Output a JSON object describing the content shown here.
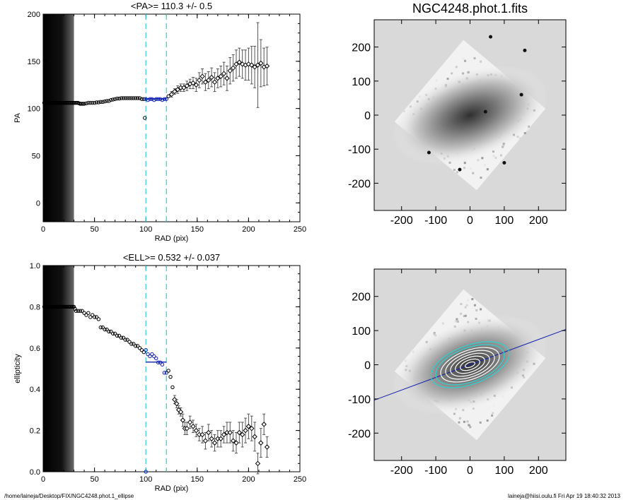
{
  "footer": {
    "path": "/home/laineja/Desktop/FIX/NGC4248.phot.1_ellipse",
    "user_time": "laineja@hiisi.oulu.fi  Fri Apr 19 18:40:32 2013"
  },
  "colors": {
    "guide_lines": "#2fd3d3",
    "mean_line": "#1020b0",
    "errorbar": "#555555"
  },
  "chart_data": [
    {
      "id": "pa-profile",
      "type": "scatter",
      "title": "<PA>= 110.3 +/-   0.5",
      "xlabel": "RAD (pix)",
      "ylabel": "PA",
      "xlim": [
        0,
        250
      ],
      "ylim": [
        -20,
        200
      ],
      "xticks": [
        0,
        50,
        100,
        150,
        200,
        250
      ],
      "yticks": [
        0,
        50,
        100,
        150,
        200
      ],
      "masked_inner_radius": [
        0,
        30
      ],
      "guide_lines_x": [
        100,
        120
      ],
      "mean_segment": {
        "x": [
          100,
          120
        ],
        "y": 110.3
      },
      "series": [
        {
          "points": [
            [
              1,
              106
            ],
            [
              2,
              106
            ],
            [
              3,
              106
            ],
            [
              4,
              106
            ],
            [
              5,
              106
            ],
            [
              6,
              106
            ],
            [
              7,
              106
            ],
            [
              8,
              106
            ],
            [
              9,
              106
            ],
            [
              10,
              106
            ],
            [
              11,
              106
            ],
            [
              12,
              106
            ],
            [
              13,
              106
            ],
            [
              14,
              106
            ],
            [
              15,
              106
            ],
            [
              16,
              106
            ],
            [
              17,
              106
            ],
            [
              18,
              106
            ],
            [
              19,
              106
            ],
            [
              20,
              106
            ],
            [
              21,
              106
            ],
            [
              22,
              106
            ],
            [
              23,
              106
            ],
            [
              24,
              106
            ],
            [
              25,
              106
            ],
            [
              26,
              106
            ],
            [
              27,
              106
            ],
            [
              28,
              106
            ],
            [
              29,
              106
            ],
            [
              30,
              106
            ],
            [
              31,
              106
            ],
            [
              32,
              106
            ],
            [
              33,
              106
            ],
            [
              34,
              106
            ],
            [
              35,
              105.5
            ],
            [
              36,
              105
            ],
            [
              37,
              105
            ],
            [
              38,
              105
            ],
            [
              39,
              105
            ],
            [
              40,
              105
            ],
            [
              42,
              105.5
            ],
            [
              44,
              106
            ],
            [
              46,
              106
            ],
            [
              48,
              106
            ],
            [
              50,
              106
            ],
            [
              52,
              106.5
            ],
            [
              54,
              106.5
            ],
            [
              56,
              107
            ],
            [
              58,
              107
            ],
            [
              60,
              107.5
            ],
            [
              62,
              108
            ],
            [
              64,
              108
            ],
            [
              66,
              109
            ],
            [
              68,
              109.5
            ],
            [
              70,
              110
            ],
            [
              72,
              110.5
            ],
            [
              74,
              110.5
            ],
            [
              76,
              111
            ],
            [
              78,
              111
            ],
            [
              80,
              111
            ],
            [
              82,
              111
            ],
            [
              84,
              111
            ],
            [
              86,
              111
            ],
            [
              88,
              111
            ],
            [
              90,
              111
            ],
            [
              92,
              111
            ],
            [
              94,
              111
            ],
            [
              96,
              110
            ],
            [
              98,
              110
            ],
            [
              100,
              110
            ],
            [
              102,
              109
            ],
            [
              104,
              110
            ],
            [
              106,
              110
            ],
            [
              108,
              109
            ],
            [
              110,
              110
            ],
            [
              112,
              110
            ],
            [
              114,
              110
            ],
            [
              116,
              109
            ],
            [
              118,
              110
            ],
            [
              120,
              110
            ],
            [
              122,
              113
            ]
          ]
        },
        {
          "points": [
            [
              99,
              90
            ]
          ]
        },
        {
          "errorbars": [
            [
              125,
              115,
              3
            ],
            [
              128,
              118,
              3
            ],
            [
              131,
              120,
              4
            ],
            [
              134,
              122,
              4
            ],
            [
              137,
              122,
              4
            ],
            [
              140,
              124,
              5
            ],
            [
              143,
              126,
              5
            ],
            [
              146,
              127,
              6
            ],
            [
              149,
              125,
              7
            ],
            [
              152,
              130,
              8
            ],
            [
              155,
              134,
              8
            ],
            [
              158,
              128,
              9
            ],
            [
              161,
              130,
              9
            ],
            [
              164,
              133,
              10
            ],
            [
              167,
              128,
              10
            ],
            [
              170,
              132,
              10
            ],
            [
              173,
              134,
              11
            ],
            [
              176,
              137,
              12
            ],
            [
              179,
              132,
              13
            ],
            [
              182,
              140,
              14
            ],
            [
              185,
              143,
              14
            ],
            [
              188,
              147,
              15
            ],
            [
              191,
              149,
              15
            ],
            [
              194,
              147,
              15
            ],
            [
              197,
              146,
              16
            ],
            [
              200,
              147,
              17
            ],
            [
              203,
              146,
              20
            ],
            [
              206,
              144,
              22
            ],
            [
              209,
              146,
              45
            ],
            [
              212,
              148,
              25
            ],
            [
              215,
              144,
              20
            ],
            [
              218,
              145,
              20
            ]
          ]
        }
      ]
    },
    {
      "id": "ellipticity-profile",
      "type": "scatter",
      "title": "<ELL>= 0.532 +/-  0.037",
      "xlabel": "RAD (pix)",
      "ylabel": "ellipticity",
      "xlim": [
        0,
        250
      ],
      "ylim": [
        0,
        1
      ],
      "xticks": [
        0,
        50,
        100,
        150,
        200,
        250
      ],
      "yticks": [
        0.0,
        0.2,
        0.4,
        0.6,
        0.8,
        1.0
      ],
      "masked_inner_radius": [
        0,
        30
      ],
      "guide_lines_x": [
        100,
        120
      ],
      "mean_segment": {
        "x": [
          100,
          120
        ],
        "y": 0.532
      },
      "series": [
        {
          "points": [
            [
              1,
              0.8
            ],
            [
              2,
              0.8
            ],
            [
              3,
              0.8
            ],
            [
              4,
              0.8
            ],
            [
              5,
              0.8
            ],
            [
              6,
              0.8
            ],
            [
              7,
              0.8
            ],
            [
              8,
              0.8
            ],
            [
              9,
              0.8
            ],
            [
              10,
              0.8
            ],
            [
              11,
              0.8
            ],
            [
              12,
              0.8
            ],
            [
              13,
              0.8
            ],
            [
              14,
              0.8
            ],
            [
              15,
              0.8
            ],
            [
              16,
              0.8
            ],
            [
              17,
              0.8
            ],
            [
              18,
              0.8
            ],
            [
              19,
              0.8
            ],
            [
              20,
              0.8
            ],
            [
              21,
              0.8
            ],
            [
              22,
              0.8
            ],
            [
              23,
              0.8
            ],
            [
              24,
              0.8
            ],
            [
              25,
              0.8
            ],
            [
              26,
              0.8
            ],
            [
              27,
              0.8
            ],
            [
              28,
              0.8
            ],
            [
              29,
              0.8
            ],
            [
              30,
              0.8
            ],
            [
              31,
              0.79
            ],
            [
              32,
              0.78
            ],
            [
              34,
              0.78
            ],
            [
              36,
              0.78
            ],
            [
              38,
              0.78
            ],
            [
              40,
              0.77
            ],
            [
              42,
              0.76
            ],
            [
              44,
              0.77
            ],
            [
              46,
              0.75
            ],
            [
              48,
              0.76
            ],
            [
              50,
              0.75
            ],
            [
              52,
              0.75
            ],
            [
              54,
              0.74
            ],
            [
              56,
              0.7
            ],
            [
              58,
              0.7
            ],
            [
              60,
              0.69
            ],
            [
              62,
              0.69
            ],
            [
              64,
              0.68
            ],
            [
              66,
              0.68
            ],
            [
              68,
              0.67
            ],
            [
              70,
              0.67
            ],
            [
              72,
              0.66
            ],
            [
              74,
              0.66
            ],
            [
              76,
              0.65
            ],
            [
              78,
              0.65
            ],
            [
              80,
              0.64
            ],
            [
              82,
              0.64
            ],
            [
              84,
              0.63
            ],
            [
              86,
              0.62
            ],
            [
              88,
              0.62
            ],
            [
              90,
              0.61
            ],
            [
              92,
              0.61
            ],
            [
              94,
              0.6
            ],
            [
              96,
              0.59
            ],
            [
              98,
              0.58
            ],
            [
              100,
              0.59
            ],
            [
              102,
              0.57
            ],
            [
              104,
              0.56
            ],
            [
              106,
              0.57
            ],
            [
              108,
              0.56
            ],
            [
              110,
              0.55
            ],
            [
              112,
              0.53
            ],
            [
              114,
              0.53
            ],
            [
              116,
              0.52
            ],
            [
              118,
              0.48
            ],
            [
              120,
              0.48
            ],
            [
              122,
              0.49
            ],
            [
              124,
              0.46
            ],
            [
              126,
              0.41
            ]
          ]
        },
        {
          "points": [
            [
              100,
              0.0
            ]
          ]
        },
        {
          "errorbars": [
            [
              128,
              0.35,
              0.02
            ],
            [
              130,
              0.33,
              0.02
            ],
            [
              132,
              0.3,
              0.02
            ],
            [
              134,
              0.29,
              0.02
            ],
            [
              136,
              0.25,
              0.03
            ],
            [
              138,
              0.21,
              0.03
            ],
            [
              140,
              0.21,
              0.03
            ],
            [
              143,
              0.24,
              0.03
            ],
            [
              146,
              0.22,
              0.03
            ],
            [
              149,
              0.2,
              0.03
            ],
            [
              152,
              0.18,
              0.03
            ],
            [
              155,
              0.18,
              0.04
            ],
            [
              158,
              0.15,
              0.04
            ],
            [
              161,
              0.19,
              0.04
            ],
            [
              164,
              0.16,
              0.04
            ],
            [
              167,
              0.14,
              0.04
            ],
            [
              170,
              0.16,
              0.04
            ],
            [
              173,
              0.16,
              0.04
            ],
            [
              176,
              0.18,
              0.04
            ],
            [
              179,
              0.19,
              0.05
            ],
            [
              182,
              0.19,
              0.05
            ],
            [
              185,
              0.15,
              0.05
            ],
            [
              188,
              0.14,
              0.05
            ],
            [
              191,
              0.19,
              0.05
            ],
            [
              194,
              0.18,
              0.06
            ],
            [
              197,
              0.2,
              0.06
            ],
            [
              200,
              0.22,
              0.06
            ],
            [
              203,
              0.21,
              0.06
            ],
            [
              206,
              0.17,
              0.07
            ],
            [
              209,
              0.04,
              0.05
            ],
            [
              212,
              0.14,
              0.07
            ],
            [
              215,
              0.23,
              0.05
            ],
            [
              218,
              0.12,
              0.05
            ]
          ]
        }
      ]
    },
    {
      "id": "galaxy-image",
      "type": "heatmap",
      "title": "NGC4248.phot.1.fits",
      "xlim": [
        -280,
        280
      ],
      "ylim": [
        -280,
        280
      ],
      "xticks": [
        -200,
        -100,
        0,
        100,
        200
      ],
      "yticks": [
        -200,
        -100,
        0,
        100,
        200
      ],
      "galaxy": {
        "center": [
          0,
          0
        ],
        "major_axis_angle_deg": 20.3,
        "ellipticity": 0.532
      }
    },
    {
      "id": "isophote-image",
      "type": "heatmap",
      "xlim": [
        -280,
        280
      ],
      "ylim": [
        -280,
        280
      ],
      "xticks": [
        -200,
        -100,
        0,
        100,
        200
      ],
      "yticks": [
        -200,
        -100,
        0,
        100,
        200
      ],
      "major_axis_line": {
        "angle_deg": 20.3
      },
      "isophote_radii": [
        15,
        30,
        45,
        60,
        75,
        90,
        105,
        120
      ]
    }
  ]
}
